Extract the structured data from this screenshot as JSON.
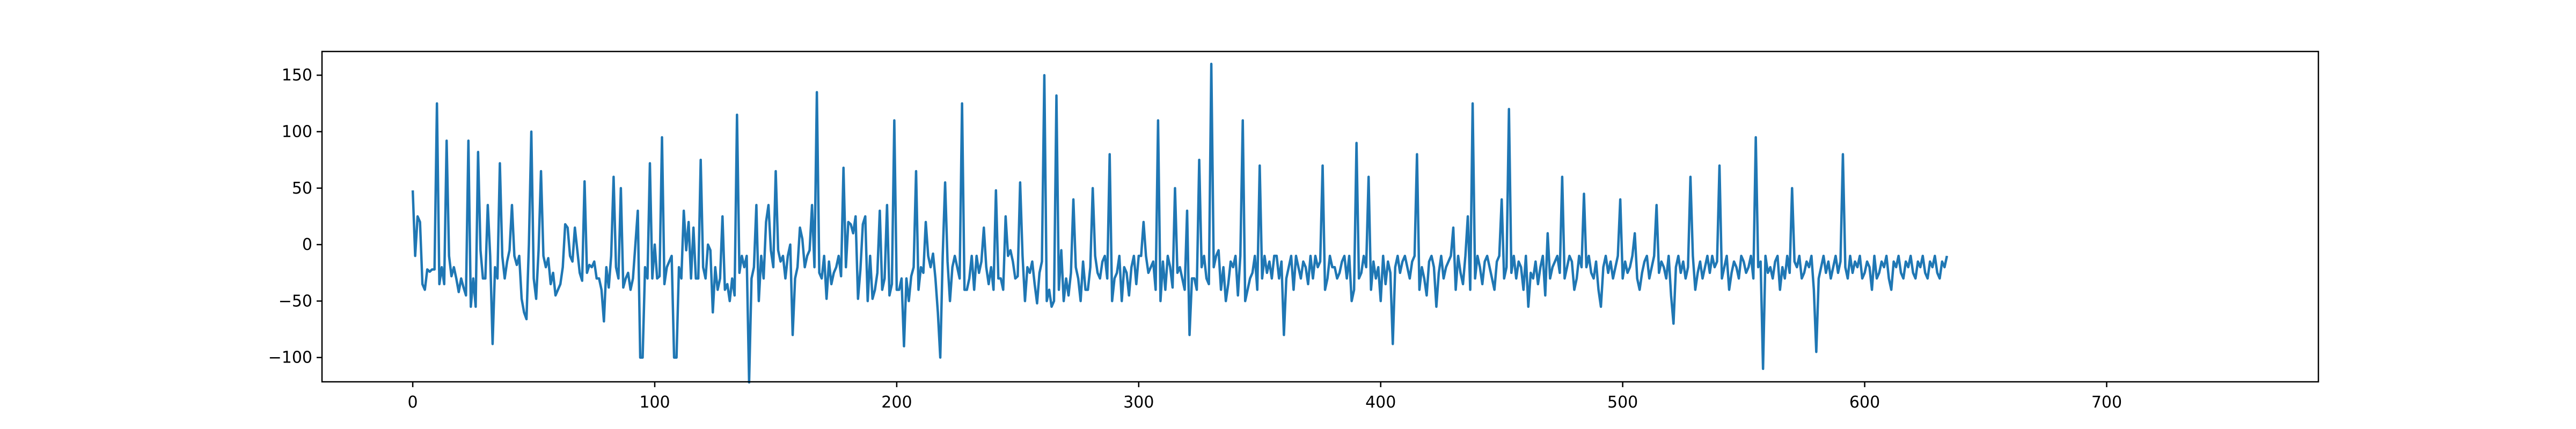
{
  "chart_data": {
    "type": "line",
    "title": "",
    "xlabel": "",
    "ylabel": "",
    "xlim": [
      -37.5,
      787.5
    ],
    "ylim": [
      -121.5,
      171.0
    ],
    "x_ticks": [
      0,
      100,
      200,
      300,
      400,
      500,
      600,
      700
    ],
    "y_ticks": [
      -100,
      -50,
      0,
      50,
      100,
      150
    ],
    "grid": false,
    "legend": "none",
    "colors": {
      "series": "#1f77b4",
      "axes": "#000000",
      "background": "#ffffff"
    },
    "series": [
      {
        "x_start": 0,
        "x_step": 1,
        "values": [
          48,
          -10,
          25,
          20,
          -35,
          -40,
          -22,
          -24,
          -22,
          -22,
          125,
          -35,
          -20,
          -35,
          92,
          -10,
          -28,
          -20,
          -30,
          -42,
          -30,
          -38,
          -45,
          92,
          -55,
          -30,
          -55,
          82,
          -5,
          -30,
          -30,
          35,
          -10,
          -88,
          -20,
          -30,
          72,
          -10,
          -30,
          -15,
          -5,
          35,
          -10,
          -18,
          -10,
          -48,
          -60,
          -66,
          0,
          100,
          -30,
          -48,
          -5,
          65,
          -10,
          -20,
          -12,
          -35,
          -25,
          -45,
          -40,
          -35,
          -20,
          18,
          15,
          -10,
          -15,
          15,
          -5,
          -25,
          -32,
          56,
          -25,
          -18,
          -20,
          -15,
          -30,
          -30,
          -40,
          -68,
          -20,
          -38,
          -10,
          60,
          -20,
          -30,
          50,
          -38,
          -30,
          -25,
          -40,
          -30,
          0,
          30,
          -100,
          -100,
          -20,
          -30,
          72,
          -30,
          0,
          -30,
          -28,
          95,
          -35,
          -20,
          -15,
          -10,
          -100,
          -100,
          -20,
          -30,
          30,
          -5,
          20,
          -30,
          15,
          -30,
          -30,
          75,
          -20,
          -30,
          0,
          -5,
          -60,
          -20,
          -40,
          -30,
          25,
          -40,
          -35,
          -50,
          -30,
          -45,
          115,
          -25,
          -10,
          -20,
          -10,
          -122,
          -30,
          -20,
          35,
          -50,
          -10,
          -30,
          20,
          35,
          -5,
          -20,
          65,
          -5,
          -15,
          -10,
          -30,
          -10,
          0,
          -80,
          -30,
          -20,
          15,
          5,
          -20,
          -10,
          -5,
          35,
          -20,
          135,
          -25,
          -30,
          -10,
          -48,
          -15,
          -35,
          -25,
          -20,
          -10,
          -28,
          68,
          -20,
          20,
          18,
          10,
          25,
          -48,
          -22,
          18,
          25,
          -50,
          -10,
          -48,
          -40,
          -25,
          30,
          -40,
          -30,
          35,
          -45,
          -35,
          110,
          -40,
          -40,
          -30,
          -90,
          -30,
          -50,
          -28,
          -20,
          65,
          -40,
          -20,
          -25,
          20,
          -10,
          -20,
          -8,
          -30,
          -60,
          -100,
          -10,
          55,
          -15,
          -50,
          -20,
          -10,
          -20,
          -30,
          125,
          -40,
          -40,
          -30,
          -10,
          -40,
          -10,
          -25,
          -15,
          15,
          -20,
          -35,
          -20,
          -40,
          48,
          -30,
          -30,
          -40,
          25,
          -10,
          -5,
          -15,
          -30,
          -28,
          55,
          -10,
          -50,
          -20,
          -25,
          -15,
          -35,
          -52,
          -25,
          -15,
          150,
          -50,
          -40,
          -55,
          -50,
          132,
          -40,
          -5,
          -50,
          -30,
          -45,
          -25,
          40,
          -20,
          -30,
          -50,
          -15,
          -40,
          -40,
          -20,
          50,
          -10,
          -25,
          -30,
          -15,
          -10,
          -30,
          80,
          -50,
          -30,
          -25,
          -10,
          -50,
          -20,
          -25,
          -45,
          -20,
          -10,
          -35,
          -10,
          -10,
          20,
          -10,
          -25,
          -20,
          -15,
          -40,
          110,
          -50,
          -15,
          -40,
          -10,
          -20,
          -38,
          50,
          -25,
          -20,
          -30,
          -40,
          30,
          -80,
          -30,
          -30,
          -40,
          75,
          -20,
          -10,
          -30,
          -35,
          160,
          -20,
          -10,
          -5,
          -40,
          -20,
          -50,
          -35,
          -15,
          -20,
          -10,
          -45,
          -10,
          110,
          -50,
          -40,
          -30,
          -25,
          -10,
          -40,
          70,
          -30,
          -10,
          -25,
          -15,
          -30,
          -10,
          -10,
          -30,
          -15,
          -80,
          -30,
          -20,
          -10,
          -40,
          -10,
          -20,
          -30,
          -15,
          -20,
          -35,
          -10,
          -30,
          -10,
          -20,
          -15,
          70,
          -40,
          -30,
          -10,
          -20,
          -20,
          -30,
          -25,
          -15,
          -10,
          -30,
          -10,
          -50,
          -40,
          90,
          -30,
          -25,
          -10,
          -20,
          60,
          -40,
          -15,
          -30,
          -20,
          -50,
          -10,
          -35,
          -15,
          -25,
          -88,
          -20,
          -10,
          -25,
          -15,
          -10,
          -20,
          -30,
          -15,
          -10,
          80,
          -40,
          -20,
          -30,
          -45,
          -15,
          -10,
          -20,
          -55,
          -25,
          -10,
          -30,
          -20,
          -15,
          -10,
          15,
          -40,
          -10,
          -25,
          -35,
          -10,
          25,
          -40,
          125,
          -30,
          -10,
          -20,
          -35,
          -15,
          -10,
          -20,
          -30,
          -40,
          -15,
          -10,
          40,
          -30,
          -20,
          120,
          -25,
          -10,
          -30,
          -15,
          -20,
          -40,
          -10,
          -55,
          -25,
          -30,
          -15,
          -35,
          -20,
          -10,
          -45,
          10,
          -30,
          -20,
          -15,
          -10,
          -25,
          60,
          -30,
          -20,
          -10,
          -15,
          -40,
          -30,
          -10,
          -20,
          45,
          -20,
          -10,
          -25,
          -30,
          -15,
          -40,
          -55,
          -20,
          -10,
          -25,
          -15,
          -30,
          -20,
          -10,
          40,
          -30,
          -15,
          -25,
          -20,
          -10,
          10,
          -30,
          -40,
          -25,
          -15,
          -10,
          -30,
          -20,
          -10,
          35,
          -25,
          -15,
          -20,
          -30,
          -10,
          -45,
          -70,
          -20,
          -10,
          -25,
          -15,
          -30,
          -20,
          60,
          -10,
          -40,
          -25,
          -15,
          -30,
          -20,
          -10,
          -25,
          -10,
          -20,
          -15,
          70,
          -30,
          -20,
          -10,
          -40,
          -25,
          -15,
          -20,
          -30,
          -10,
          -15,
          -25,
          -20,
          -10,
          -30,
          95,
          -20,
          -15,
          -110,
          -10,
          -25,
          -20,
          -30,
          -15,
          -10,
          -40,
          -20,
          -30,
          -10,
          -25,
          50,
          -15,
          -20,
          -10,
          -30,
          -25,
          -15,
          -20,
          -10,
          -40,
          -95,
          -30,
          -20,
          -10,
          -25,
          -15,
          -30,
          -20,
          -10,
          -25,
          -15,
          80,
          -20,
          -30,
          -10,
          -25,
          -15,
          -20,
          -10,
          -30,
          -25,
          -15,
          -20,
          -40,
          -10,
          -30,
          -25,
          -15,
          -20,
          -10,
          -30,
          -40,
          -15,
          -20,
          -10,
          -25,
          -30,
          -15,
          -20,
          -10,
          -25,
          -30,
          -15,
          -20,
          -10,
          -25,
          -30,
          -15,
          -20,
          -10,
          -25,
          -30,
          -15,
          -20,
          -10
        ]
      }
    ]
  }
}
